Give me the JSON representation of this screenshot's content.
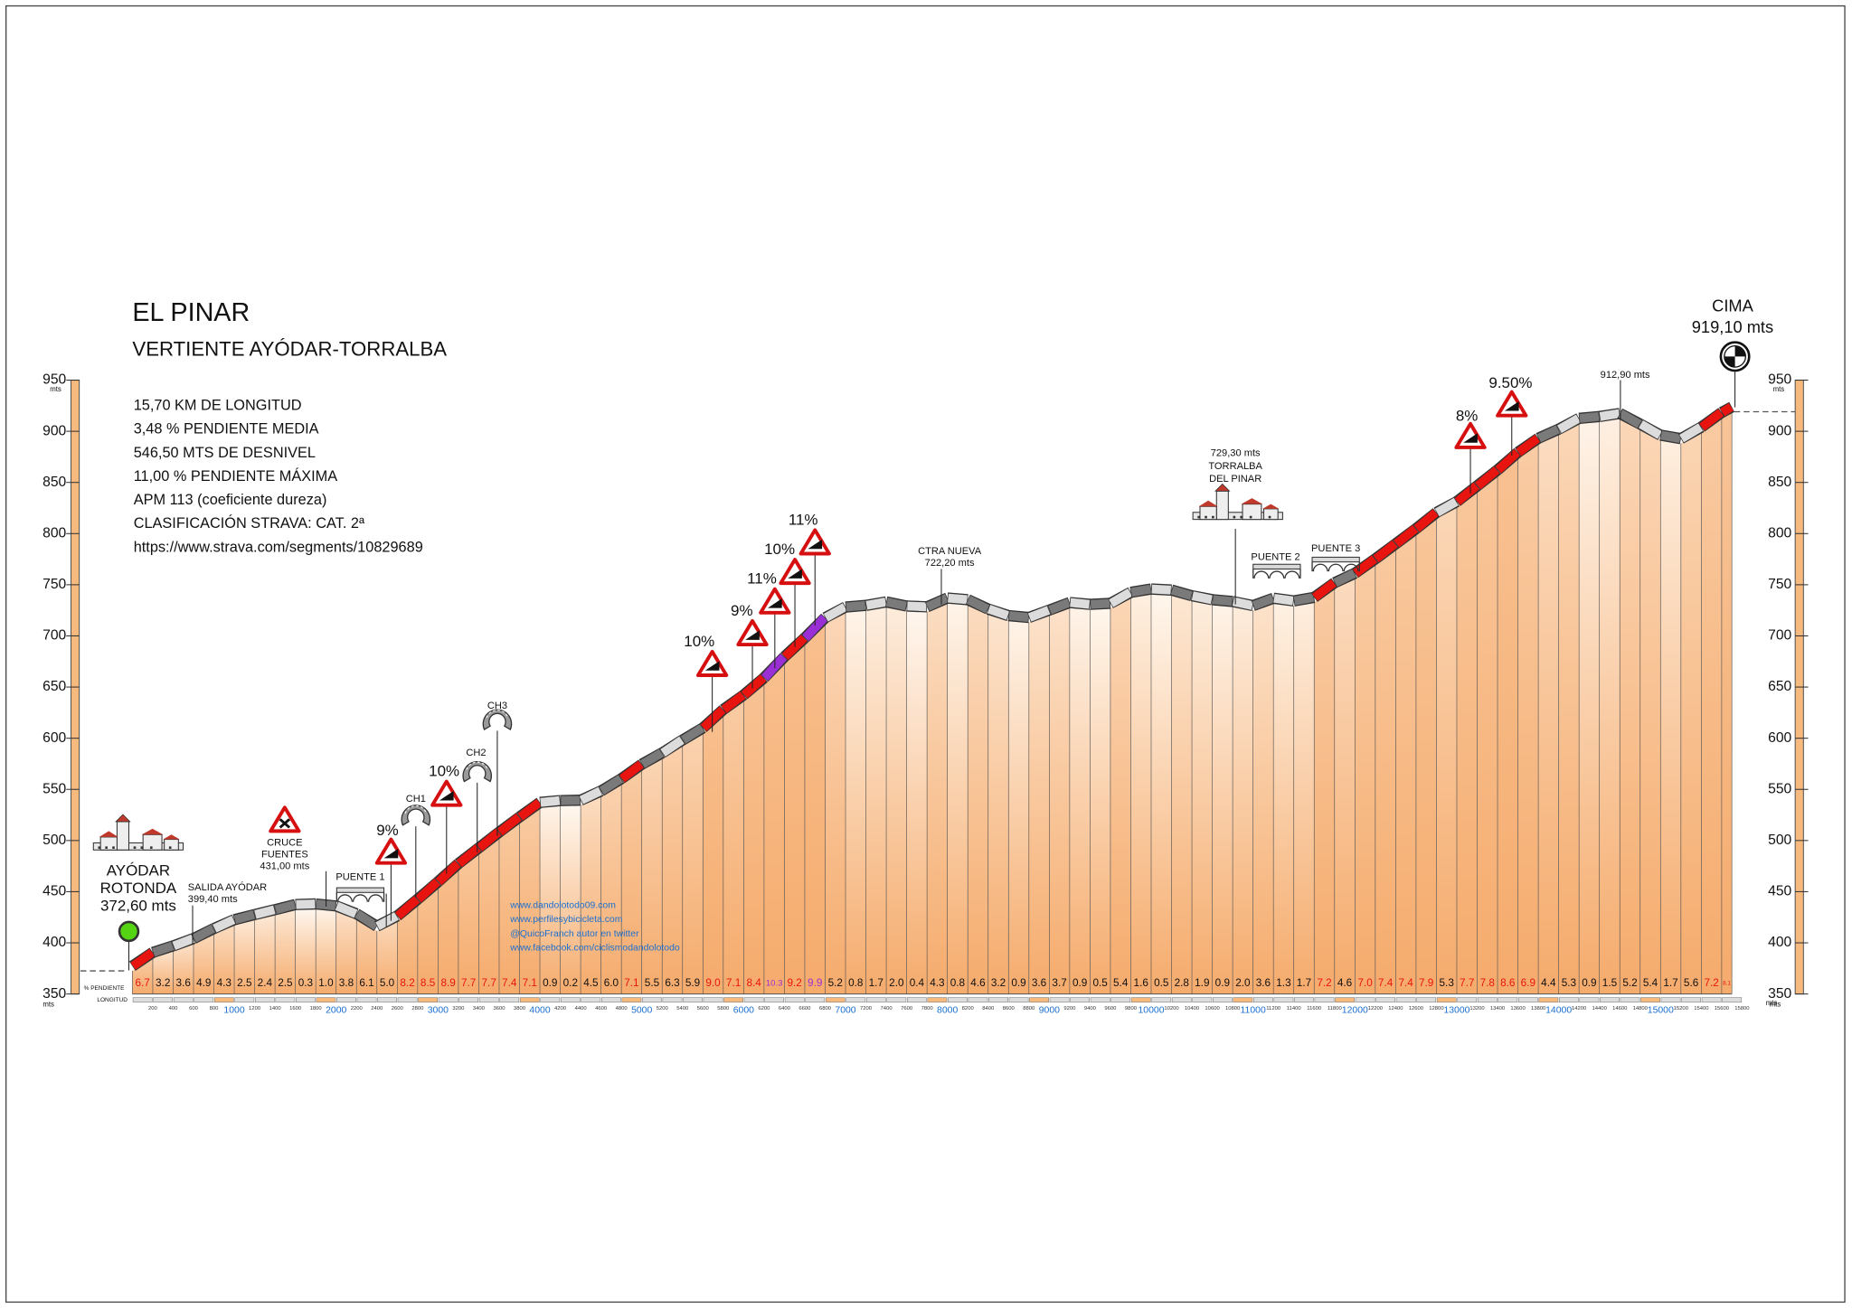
{
  "chart_data": {
    "type": "elevation-profile",
    "title": "EL PINAR",
    "subtitle": "VERTIENTE AYÓDAR-TORRALBA",
    "stats": [
      "15,70 KM DE LONGITUD",
      "3,48 % PENDIENTE MEDIA",
      "546,50 MTS DE DESNIVEL",
      "11,00 % PENDIENTE MÁXIMA",
      "APM 113 (coeficiente dureza)",
      "CLASIFICACIÓN STRAVA: CAT. 2ª",
      "https://www.strava.com/segments/10829689"
    ],
    "x": [
      0,
      200,
      400,
      600,
      800,
      1000,
      1200,
      1400,
      1600,
      1800,
      2000,
      2200,
      2400,
      2600,
      2800,
      3000,
      3200,
      3400,
      3600,
      3800,
      4000,
      4200,
      4400,
      4600,
      4800,
      5000,
      5200,
      5400,
      5600,
      5800,
      6000,
      6200,
      6400,
      6600,
      6800,
      7000,
      7200,
      7400,
      7600,
      7800,
      8000,
      8200,
      8400,
      8600,
      8800,
      9000,
      9200,
      9400,
      9600,
      9800,
      10000,
      10200,
      10400,
      10600,
      10800,
      11000,
      11200,
      11400,
      11600,
      11800,
      12000,
      12200,
      12400,
      12600,
      12800,
      13000,
      13200,
      13400,
      13600,
      13800,
      14000,
      14200,
      14400,
      14600,
      14800,
      15000,
      15200,
      15400,
      15600,
      15700
    ],
    "elevation": [
      372.6,
      386,
      392.4,
      399.6,
      409.4,
      418,
      423,
      427.8,
      432.8,
      433.4,
      431.4,
      423.8,
      411.6,
      421.6,
      438,
      455,
      472.8,
      488.2,
      503.6,
      518.4,
      532.6,
      534.4,
      534.8,
      543.8,
      555.8,
      570,
      581,
      593.6,
      605.4,
      623.4,
      637.6,
      654.4,
      675,
      693.4,
      713.2,
      723.6,
      725.2,
      728.6,
      724.6,
      723.8,
      732.4,
      730.8,
      721.6,
      715.2,
      713.4,
      720.6,
      728,
      726.2,
      727.2,
      738,
      741.2,
      740.2,
      734.6,
      730.8,
      729,
      725,
      732.2,
      729.6,
      733,
      747.4,
      756.6,
      770.6,
      785.4,
      800.2,
      816,
      826.6,
      842,
      857.6,
      874.8,
      888.6,
      897.4,
      908,
      909.8,
      912.8,
      902.4,
      891.6,
      888.2,
      899.4,
      913.8,
      919.1
    ],
    "gradient": {
      "values": [
        6.7,
        3.2,
        3.6,
        4.9,
        4.3,
        2.5,
        2.4,
        2.5,
        0.3,
        1.0,
        3.8,
        6.1,
        5.0,
        8.2,
        8.5,
        8.9,
        7.7,
        7.7,
        7.4,
        7.1,
        0.9,
        0.2,
        4.5,
        6.0,
        7.1,
        5.5,
        6.3,
        5.9,
        9.0,
        7.1,
        8.4,
        10.3,
        9.2,
        9.9,
        5.2,
        0.8,
        1.7,
        2.0,
        0.4,
        4.3,
        0.8,
        4.6,
        3.2,
        0.9,
        3.6,
        3.7,
        0.9,
        0.5,
        5.4,
        1.6,
        0.5,
        2.8,
        1.9,
        0.9,
        2.0,
        3.6,
        1.3,
        1.7,
        7.2,
        4.6,
        7.0,
        7.4,
        7.4,
        7.9,
        5.3,
        7.7,
        7.8,
        8.6,
        6.9,
        4.4,
        5.3,
        0.9,
        1.5,
        5.2,
        5.4,
        1.7,
        5.6,
        7.2,
        8.1
      ],
      "value_labels": [
        "6.7",
        "3.2",
        "3.6",
        "4.9",
        "4.3",
        "2.5",
        "2.4",
        "2.5",
        "0.3",
        "1.0",
        "3.8",
        "6.1",
        "5.0",
        "8.2",
        "8.5",
        "8.9",
        "7.7",
        "7.7",
        "7.4",
        "7.1",
        "0.9",
        "0.2",
        "4.5",
        "6.0",
        "7.1",
        "5.5",
        "6.3",
        "5.9",
        "9.0",
        "7.1",
        "8.4",
        "10.3",
        "9.2",
        "9.9",
        "5.2",
        "0.8",
        "1.7",
        "2.0",
        "0.4",
        "4.3",
        "0.8",
        "4.6",
        "3.2",
        "0.9",
        "3.6",
        "3.7",
        "0.9",
        "0.5",
        "5.4",
        "1.6",
        "0.5",
        "2.8",
        "1.9",
        "0.9",
        "2.0",
        "3.6",
        "1.3",
        "1.7",
        "7.2",
        "4.6",
        "7.0",
        "7.4",
        "7.4",
        "7.9",
        "5.3",
        "7.7",
        "7.8",
        "8.6",
        "6.9",
        "4.4",
        "5.3",
        "0.9",
        "1.5",
        "5.2",
        "5.4",
        "1.7",
        "5.6",
        "7.2",
        "8.1"
      ]
    },
    "gradient_colors": [
      {
        "from": 0,
        "color": "#111111"
      },
      {
        "from": 6.5,
        "color": "#e8140f"
      },
      {
        "from": 9.5,
        "color": "#9b2fd6"
      }
    ],
    "band_colors": [
      "#dcdcdc",
      "#7a7a7a"
    ],
    "fill_colors": [
      "#f5ab6c",
      "#fff9f2"
    ],
    "xlim": [
      0,
      15800
    ],
    "xticks": [
      200,
      400,
      600,
      800,
      1000,
      1200,
      1400,
      1600,
      1800,
      2000,
      2200,
      2400,
      2600,
      2800,
      3000,
      3200,
      3400,
      3600,
      3800,
      4000,
      4200,
      4400,
      4600,
      4800,
      5000,
      5200,
      5400,
      5600,
      5800,
      6000,
      6200,
      6400,
      6600,
      6800,
      7000,
      7200,
      7400,
      7600,
      7800,
      8000,
      8200,
      8400,
      8600,
      8800,
      9000,
      9200,
      9400,
      9600,
      9800,
      10000,
      10200,
      10400,
      10600,
      10800,
      11000,
      11200,
      11400,
      11600,
      11800,
      12000,
      12200,
      12400,
      12600,
      12800,
      13000,
      13200,
      13400,
      13600,
      13800,
      14000,
      14200,
      14400,
      14600,
      14800,
      15000,
      15200,
      15400,
      15600,
      15800
    ],
    "ylim": [
      350,
      950
    ],
    "yticks": [
      350,
      400,
      450,
      500,
      550,
      600,
      650,
      700,
      750,
      800,
      850,
      900,
      950
    ],
    "y_unit": "mts",
    "x_unit": "mts",
    "row_labels": {
      "gradient": "% PENDIENTE",
      "distance": "LONGITUD"
    },
    "annotations": [
      [
        "AYÓDAR",
        "ROTONDA",
        "372,60 mts"
      ],
      [
        "SALIDA AYÓDAR",
        "399,40 mts"
      ],
      [
        "CRUCE",
        "FUENTES",
        "431,00 mts"
      ],
      [
        "PUENTE 1"
      ],
      [
        "9%"
      ],
      [
        "CH1"
      ],
      [
        "10%"
      ],
      [
        "CH2"
      ],
      [
        "CH3"
      ],
      [
        "10%"
      ],
      [
        "9%"
      ],
      [
        "11%"
      ],
      [
        "10%"
      ],
      [
        "11%"
      ],
      [
        "CTRA NUEVA",
        "722,20 mts"
      ],
      [
        "729,30 mts",
        "TORRALBA",
        "DEL PINAR"
      ],
      [
        "PUENTE 2"
      ],
      [
        "PUENTE 3"
      ],
      [
        "8%"
      ],
      [
        "9.50%"
      ],
      [
        "912,90 mts"
      ],
      [
        "CIMA",
        "919,10 mts"
      ]
    ],
    "credits": [
      "www.dandolotodo09.com",
      "www.perfilesybicicleta.com",
      "@QuicoFranch autor en twitter",
      "www.facebook.com/ciclismodandolotodo"
    ]
  }
}
